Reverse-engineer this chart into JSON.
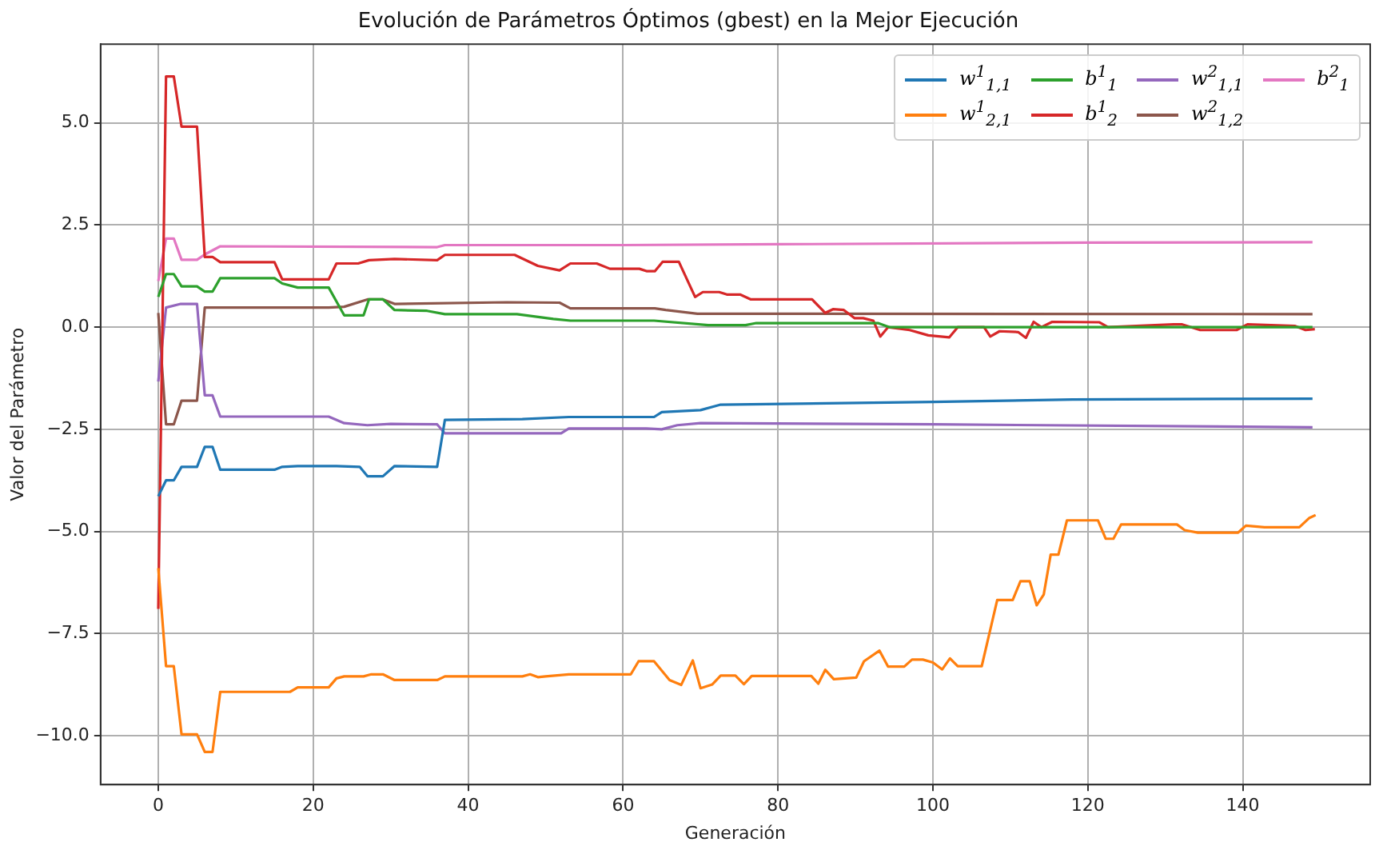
{
  "chart_data": {
    "type": "line",
    "title": "Evolución de Parámetros Óptimos (gbest) en la Mejor Ejecución",
    "xlabel": "Generación",
    "ylabel": "Valor del Parámetro",
    "xlim": [
      -7.45,
      156.45
    ],
    "ylim": [
      -11.2,
      6.93
    ],
    "xticks": [
      0,
      20,
      40,
      60,
      80,
      100,
      120,
      140
    ],
    "yticks": [
      {
        "value": -10,
        "label": "−10.0"
      },
      {
        "value": -7.5,
        "label": "−7.5"
      },
      {
        "value": -5,
        "label": "−5.0"
      },
      {
        "value": -2.5,
        "label": "−2.5"
      },
      {
        "value": 0,
        "label": "0.0"
      },
      {
        "value": 2.5,
        "label": "2.5"
      },
      {
        "value": 5,
        "label": "5.0"
      }
    ],
    "grid": true,
    "legend": "top right",
    "marker": "none",
    "line_style": "solid",
    "series": [
      {
        "name": "w$^{1}$$_{1,1}$",
        "color": "#1f77b4",
        "x": [
          0,
          1,
          2,
          3,
          5,
          6,
          7,
          8,
          15,
          16,
          18,
          23,
          26,
          27,
          29,
          30.5,
          36,
          37,
          47,
          53,
          64,
          65,
          70,
          72.5,
          100,
          118,
          149
        ],
        "values": [
          -4.14,
          -3.75,
          -3.75,
          -3.42,
          -3.42,
          -2.93,
          -2.93,
          -3.49,
          -3.49,
          -3.42,
          -3.4,
          -3.4,
          -3.42,
          -3.65,
          -3.65,
          -3.4,
          -3.42,
          -2.27,
          -2.25,
          -2.2,
          -2.2,
          -2.08,
          -2.03,
          -1.9,
          -1.83,
          -1.77,
          -1.75
        ]
      },
      {
        "name": "w$^{1}$$_{2,1}$",
        "color": "#ff7f0e",
        "x": [
          0,
          1,
          2,
          3,
          5,
          6,
          7,
          8,
          17,
          18,
          22,
          23,
          24,
          26.5,
          27.5,
          29,
          30.5,
          36,
          37,
          47,
          48,
          49,
          50,
          53,
          61,
          62,
          64,
          66,
          67.5,
          69,
          70,
          71.5,
          72.6,
          74.5,
          75.6,
          76.6,
          84.3,
          85.2,
          86.1,
          87.2,
          90.1,
          91.1,
          93.1,
          94.2,
          96.3,
          97.3,
          98.7,
          100,
          101.2,
          102.2,
          103.2,
          106.3,
          108.3,
          110.3,
          111.3,
          112.5,
          113.4,
          114.3,
          115.2,
          116.2,
          117.3,
          121.3,
          122.3,
          123.3,
          124.3,
          131.5,
          132.5,
          134.2,
          139.4,
          140.4,
          142.8,
          147.3,
          148.6,
          149.4
        ],
        "values": [
          -5.9,
          -8.3,
          -8.3,
          -9.97,
          -9.97,
          -10.4,
          -10.4,
          -8.93,
          -8.93,
          -8.82,
          -8.82,
          -8.6,
          -8.55,
          -8.55,
          -8.5,
          -8.5,
          -8.64,
          -8.64,
          -8.55,
          -8.55,
          -8.5,
          -8.57,
          -8.55,
          -8.5,
          -8.5,
          -8.18,
          -8.18,
          -8.64,
          -8.76,
          -8.16,
          -8.84,
          -8.75,
          -8.53,
          -8.53,
          -8.74,
          -8.54,
          -8.54,
          -8.73,
          -8.39,
          -8.62,
          -8.58,
          -8.18,
          -7.92,
          -8.31,
          -8.31,
          -8.14,
          -8.14,
          -8.21,
          -8.38,
          -8.11,
          -8.3,
          -8.3,
          -6.68,
          -6.68,
          -6.22,
          -6.22,
          -6.81,
          -6.55,
          -5.57,
          -5.57,
          -4.73,
          -4.73,
          -5.18,
          -5.18,
          -4.83,
          -4.83,
          -4.97,
          -5.03,
          -5.03,
          -4.86,
          -4.9,
          -4.9,
          -4.67,
          -4.6
        ]
      },
      {
        "name": "b$^{1}$$_{1}$",
        "color": "#2ca02c",
        "x": [
          0,
          1,
          2,
          3,
          5,
          6,
          7,
          8,
          15,
          16,
          18,
          22,
          23,
          24,
          26.5,
          27.2,
          29,
          30.5,
          34.7,
          37,
          46.3,
          51,
          53.2,
          64,
          71,
          75.8,
          77.2,
          92.9,
          94.4,
          149
        ],
        "values": [
          0.74,
          1.3,
          1.3,
          1.0,
          1.0,
          0.87,
          0.87,
          1.2,
          1.2,
          1.07,
          0.97,
          0.97,
          0.63,
          0.29,
          0.29,
          0.68,
          0.68,
          0.42,
          0.4,
          0.32,
          0.32,
          0.2,
          0.16,
          0.16,
          0.05,
          0.05,
          0.1,
          0.1,
          0.0,
          0.0
        ]
      },
      {
        "name": "b$^{1}$$_{2}$",
        "color": "#d62728",
        "x": [
          0,
          1,
          2,
          3,
          5,
          6,
          7,
          8,
          15,
          16,
          22,
          23,
          25.8,
          27.2,
          30.5,
          36,
          37,
          46,
          49,
          51.8,
          53.2,
          56.6,
          58.3,
          62.1,
          63.1,
          64.1,
          65.1,
          67.2,
          69.3,
          70.3,
          72.4,
          73.4,
          75.1,
          76.5,
          84.4,
          86.1,
          87.1,
          88.5,
          89.9,
          91,
          92.3,
          93.2,
          94.2,
          97,
          99.4,
          102.1,
          103.2,
          106.6,
          107.4,
          108.6,
          111,
          112,
          113,
          114,
          115.4,
          121.5,
          122.6,
          131.1,
          132.1,
          134.5,
          139.2,
          140.6,
          146.7,
          148.1,
          149.3
        ],
        "values": [
          -6.9,
          6.14,
          6.14,
          4.91,
          4.91,
          1.72,
          1.72,
          1.59,
          1.59,
          1.17,
          1.17,
          1.56,
          1.56,
          1.64,
          1.67,
          1.64,
          1.77,
          1.77,
          1.5,
          1.39,
          1.56,
          1.56,
          1.43,
          1.43,
          1.37,
          1.37,
          1.6,
          1.6,
          0.74,
          0.86,
          0.86,
          0.8,
          0.8,
          0.68,
          0.68,
          0.35,
          0.44,
          0.42,
          0.22,
          0.22,
          0.16,
          -0.23,
          0.0,
          -0.07,
          -0.2,
          -0.25,
          0.0,
          0.0,
          -0.23,
          -0.1,
          -0.12,
          -0.26,
          0.13,
          0.0,
          0.13,
          0.12,
          0.0,
          0.07,
          0.07,
          -0.07,
          -0.07,
          0.07,
          0.03,
          -0.07,
          -0.05
        ]
      },
      {
        "name": "w$^{2}$$_{1,1}$",
        "color": "#9467bd",
        "x": [
          0,
          1,
          2.9,
          5,
          6,
          7,
          8,
          22,
          24,
          27,
          30,
          36,
          37,
          47,
          52,
          53,
          63,
          65,
          67,
          70,
          100,
          149
        ],
        "values": [
          -1.33,
          0.48,
          0.57,
          0.57,
          -1.67,
          -1.67,
          -2.19,
          -2.19,
          -2.35,
          -2.4,
          -2.37,
          -2.38,
          -2.6,
          -2.6,
          -2.6,
          -2.48,
          -2.48,
          -2.5,
          -2.4,
          -2.35,
          -2.38,
          -2.45
        ]
      },
      {
        "name": "w$^{2}$$_{1,2}$",
        "color": "#8c564b",
        "x": [
          0,
          1,
          2,
          3,
          5,
          6,
          22,
          24,
          27,
          29,
          30.5,
          45,
          51.8,
          53.2,
          64.1,
          65.5,
          69.6,
          149
        ],
        "values": [
          0.35,
          -2.38,
          -2.38,
          -1.8,
          -1.8,
          0.48,
          0.48,
          0.5,
          0.68,
          0.68,
          0.57,
          0.61,
          0.6,
          0.46,
          0.46,
          0.42,
          0.33,
          0.32
        ]
      },
      {
        "name": "b$^{2}$$_{1}$",
        "color": "#e377c2",
        "x": [
          0,
          1,
          2,
          3,
          5,
          6,
          8,
          36,
          37,
          60,
          80,
          120,
          149
        ],
        "values": [
          1.13,
          2.17,
          2.17,
          1.65,
          1.65,
          1.78,
          1.98,
          1.96,
          2.01,
          2.01,
          2.03,
          2.07,
          2.08
        ]
      }
    ]
  }
}
